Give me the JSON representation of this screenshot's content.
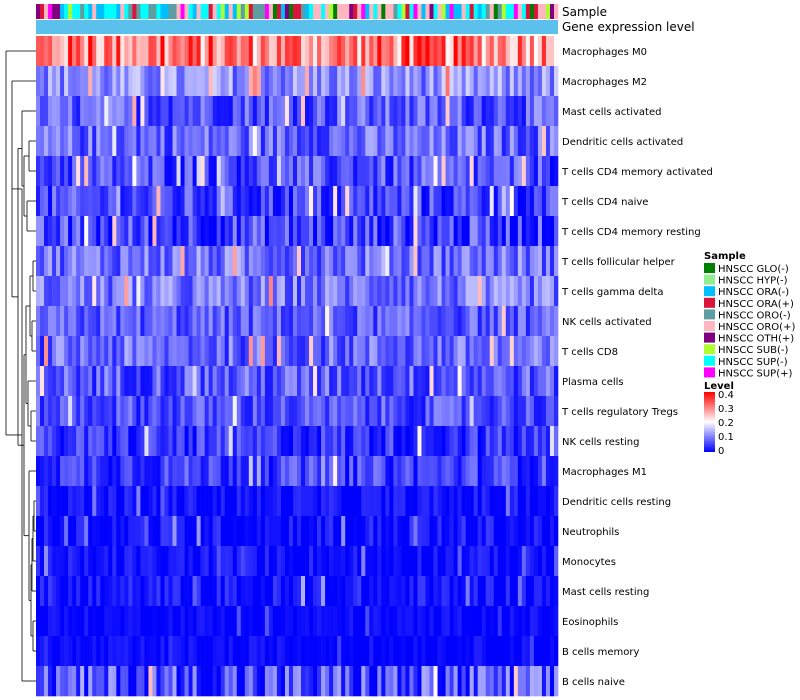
{
  "chart_data": {
    "type": "heatmap",
    "title": "",
    "annotation_tracks": [
      "Sample",
      "Gene expression level"
    ],
    "rows": [
      {
        "name": "Macrophages M0",
        "mean": 0.3,
        "spread": 0.1
      },
      {
        "name": "Macrophages M2",
        "mean": 0.11,
        "spread": 0.06
      },
      {
        "name": "Mast cells activated",
        "mean": 0.07,
        "spread": 0.06
      },
      {
        "name": "Dendritic cells activated",
        "mean": 0.08,
        "spread": 0.06
      },
      {
        "name": "T cells CD4 memory activated",
        "mean": 0.06,
        "spread": 0.06
      },
      {
        "name": "T cells CD4 naive",
        "mean": 0.05,
        "spread": 0.06
      },
      {
        "name": "T cells CD4 memory resting",
        "mean": 0.05,
        "spread": 0.07
      },
      {
        "name": "T cells follicular helper",
        "mean": 0.09,
        "spread": 0.06
      },
      {
        "name": "T cells gamma delta",
        "mean": 0.09,
        "spread": 0.06
      },
      {
        "name": "NK cells activated",
        "mean": 0.07,
        "spread": 0.05
      },
      {
        "name": "T cells CD8",
        "mean": 0.08,
        "spread": 0.06
      },
      {
        "name": "Plasma cells",
        "mean": 0.07,
        "spread": 0.06
      },
      {
        "name": "T cells regulatory  Tregs",
        "mean": 0.06,
        "spread": 0.05
      },
      {
        "name": "NK cells resting",
        "mean": 0.04,
        "spread": 0.05
      },
      {
        "name": "Macrophages M1",
        "mean": 0.05,
        "spread": 0.05
      },
      {
        "name": "Dendritic cells resting",
        "mean": 0.01,
        "spread": 0.03
      },
      {
        "name": "Neutrophils",
        "mean": 0.01,
        "spread": 0.04
      },
      {
        "name": "Monocytes",
        "mean": 0.01,
        "spread": 0.03
      },
      {
        "name": "Mast cells resting",
        "mean": 0.01,
        "spread": 0.04
      },
      {
        "name": "Eosinophils",
        "mean": 0.005,
        "spread": 0.02
      },
      {
        "name": "B cells memory",
        "mean": 0.005,
        "spread": 0.02
      },
      {
        "name": "B cells naive",
        "mean": 0.05,
        "spread": 0.09
      }
    ],
    "n_columns": 130,
    "value_range": [
      0,
      0.4
    ],
    "color_scale": [
      "#0000ff",
      "#ffffff",
      "#ff0000"
    ],
    "sample_groups": [
      {
        "name": "HNSCC GLO(-)",
        "color": "#008000"
      },
      {
        "name": "HNSCC HYP(-)",
        "color": "#90ee90"
      },
      {
        "name": "HNSCC ORA(-)",
        "color": "#00bfff"
      },
      {
        "name": "HNSCC ORA(+)",
        "color": "#dc143c"
      },
      {
        "name": "HNSCC ORO(-)",
        "color": "#5f9ea0"
      },
      {
        "name": "HNSCC ORO(+)",
        "color": "#ffb6c1"
      },
      {
        "name": "HNSCC OTH(+)",
        "color": "#800080"
      },
      {
        "name": "HNSCC SUB(-)",
        "color": "#adff2f"
      },
      {
        "name": "HNSCC SUP(-)",
        "color": "#00ffff"
      },
      {
        "name": "HNSCC SUP(+)",
        "color": "#ff00ff"
      }
    ],
    "expression_track_color": "#5bc0eb",
    "legend": {
      "sample_title": "Sample",
      "level_title": "Level",
      "level_ticks": [
        "0.4",
        "0.3",
        "0.2",
        "0.1",
        "0"
      ],
      "placement": "right"
    }
  }
}
